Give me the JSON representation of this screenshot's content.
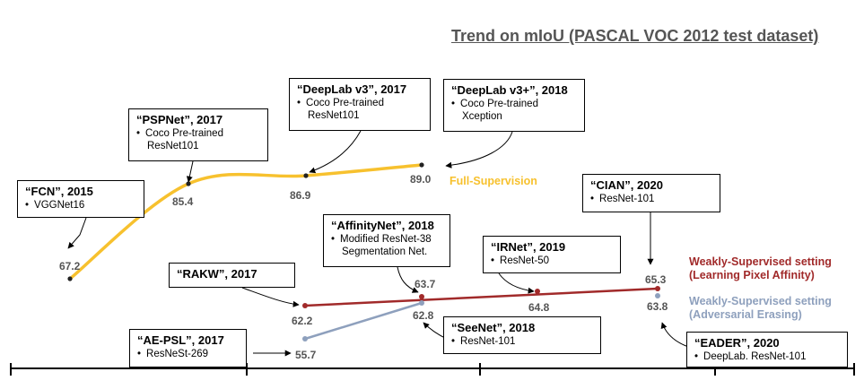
{
  "title": "Trend on mIoU (PASCAL VOC 2012 test dataset)",
  "colors": {
    "full": "#F7C12E",
    "affinity": "#A12A2A",
    "adversarial": "#8EA0BD",
    "axis": "#000000",
    "label": "#555555"
  },
  "chart_data": {
    "type": "line",
    "title": "Trend on mIoU (PASCAL VOC 2012 test dataset)",
    "xlabel": "",
    "ylabel": "",
    "series": [
      {
        "name": "Full-Supervision",
        "points": [
          {
            "method": "FCN",
            "year": 2015,
            "value": 67.2
          },
          {
            "method": "PSPNet",
            "year": 2017,
            "value": 85.4
          },
          {
            "method": "DeepLab v3",
            "year": 2017,
            "value": 86.9
          },
          {
            "method": "DeepLab v3+",
            "year": 2018,
            "value": 89.0
          }
        ]
      },
      {
        "name": "Weakly-Supervised setting (Learning Pixel Affinity)",
        "points": [
          {
            "method": "RAKW",
            "year": 2017,
            "value": 62.2
          },
          {
            "method": "AffinityNet",
            "year": 2018,
            "value": 63.7
          },
          {
            "method": "IRNet",
            "year": 2019,
            "value": 64.8
          },
          {
            "method": "CIAN",
            "year": 2020,
            "value": 65.3
          }
        ]
      },
      {
        "name": "Weakly-Supervised setting (Adversarial Erasing)",
        "points": [
          {
            "method": "AE-PSL",
            "year": 2017,
            "value": 55.7
          },
          {
            "method": "SeeNet",
            "year": 2018,
            "value": 62.8
          },
          {
            "method": "EADER",
            "year": 2020,
            "value": 63.8
          }
        ]
      }
    ]
  },
  "series_labels": {
    "full": [
      "Full-Supervision"
    ],
    "affinity": [
      "Weakly-Supervised setting",
      "(Learning Pixel Affinity)"
    ],
    "adversarial": [
      "Weakly-Supervised setting",
      "(Adversarial Erasing)"
    ]
  },
  "value_labels": {
    "fcn": "67.2",
    "pspnet": "85.4",
    "deeplabv3": "86.9",
    "deeplabv3plus": "89.0",
    "rakw": "62.2",
    "affinitynet": "63.7",
    "irnet": "64.8",
    "cian": "65.3",
    "aepsl": "55.7",
    "seenet": "62.8",
    "eader": "63.8"
  },
  "boxes": {
    "fcn": {
      "title": "“FCN”, 2015",
      "items": [
        "VGGNet16"
      ]
    },
    "pspnet": {
      "title": "“PSPNet”, 2017",
      "items": [
        "Coco Pre-trained",
        "ResNet101"
      ]
    },
    "deeplabv3": {
      "title": "“DeepLab v3”, 2017",
      "items": [
        "Coco Pre-trained",
        "ResNet101"
      ]
    },
    "deeplabv3plus": {
      "title": "“DeepLab v3+”, 2018",
      "items": [
        "Coco Pre-trained",
        "Xception"
      ]
    },
    "cian": {
      "title": "“CIAN”, 2020",
      "items": [
        "ResNet-101"
      ]
    },
    "affinitynet": {
      "title": "“AffinityNet”, 2018",
      "items": [
        "Modified ResNet-38",
        "Segmentation Net."
      ]
    },
    "irnet": {
      "title": "“IRNet”, 2019",
      "items": [
        "ResNet-50"
      ]
    },
    "rakw": {
      "title": "“RAKW”, 2017",
      "items": []
    },
    "aepsl": {
      "title": "“AE-PSL”, 2017",
      "items": [
        "ResNeSt-269"
      ]
    },
    "seenet": {
      "title": "“SeeNet”, 2018",
      "items": [
        "ResNet-101"
      ]
    },
    "eader": {
      "title": "“EADER”, 2020",
      "items": [
        "DeepLab. ResNet-101"
      ]
    }
  }
}
